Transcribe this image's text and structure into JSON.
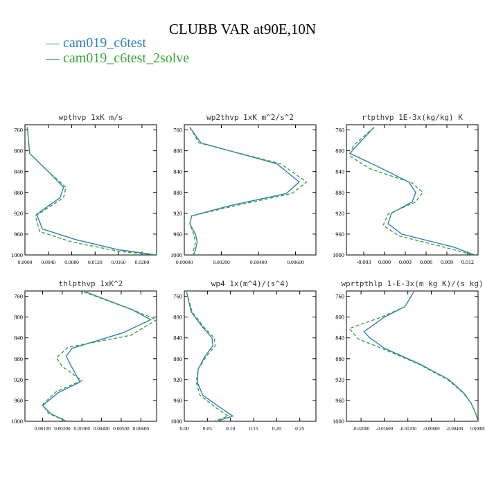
{
  "title": "CLUBB VAR at90E,10N",
  "legend": [
    {
      "label": "— cam019_c6test",
      "color": "#2f7ebf",
      "style": "solid"
    },
    {
      "label": "— cam019_c6test_2solve",
      "color": "#3aa53a",
      "style": "dashed"
    }
  ],
  "chart_data": [
    {
      "type": "line",
      "title": "wpthvp  1xK m/s",
      "ylim": [
        1000,
        750
      ],
      "yticks": [
        "760",
        "800",
        "840",
        "880",
        "920",
        "960",
        "1000"
      ],
      "xlim": [
        0.0,
        0.0225
      ],
      "xticks": [
        "0.0000",
        "0.0040",
        "0.0080",
        "0.0120",
        "0.0160",
        "0.0200"
      ],
      "grid": false,
      "series": [
        {
          "name": "cam019_c6test",
          "y": [
            755,
            780,
            805,
            840,
            870,
            890,
            922,
            950,
            970,
            990,
            1000
          ],
          "x": [
            0.0004,
            0.0006,
            0.0008,
            0.004,
            0.0066,
            0.006,
            0.002,
            0.003,
            0.0085,
            0.016,
            0.0225
          ]
        },
        {
          "name": "cam019_c6test_2solve",
          "y": [
            755,
            780,
            805,
            840,
            870,
            890,
            925,
            955,
            975,
            993,
            1000
          ],
          "x": [
            0.0004,
            0.0006,
            0.0008,
            0.004,
            0.007,
            0.0066,
            0.0018,
            0.0025,
            0.008,
            0.016,
            0.0225
          ]
        }
      ]
    },
    {
      "type": "line",
      "title": "wp2thvp  1xK m^2/s^2",
      "ylim": [
        1000,
        750
      ],
      "yticks": [
        "760",
        "800",
        "840",
        "880",
        "920",
        "960",
        "1000"
      ],
      "xlim": [
        0.0,
        0.0071
      ],
      "xticks": [
        "0.00000",
        "0.00200",
        "0.00400",
        "0.00600"
      ],
      "grid": false,
      "series": [
        {
          "name": "cam019_c6test",
          "y": [
            755,
            785,
            825,
            860,
            882,
            905,
            925,
            940,
            960,
            975,
            990,
            1000
          ],
          "x": [
            0.0003,
            0.0009,
            0.005,
            0.0062,
            0.0055,
            0.0025,
            0.0004,
            0.0003,
            0.0006,
            0.0007,
            0.0006,
            0.0005
          ]
        },
        {
          "name": "cam019_c6test_2solve",
          "y": [
            755,
            785,
            825,
            860,
            882,
            905,
            925,
            940,
            960,
            975,
            990,
            1000
          ],
          "x": [
            0.0003,
            0.0008,
            0.0052,
            0.0066,
            0.0058,
            0.0028,
            0.0004,
            0.0003,
            0.0005,
            0.0006,
            0.0005,
            0.0005
          ]
        }
      ]
    },
    {
      "type": "line",
      "title": "rtpthvp  1E-3x(kg/kg) K",
      "ylim": [
        1000,
        750
      ],
      "yticks": [
        "760",
        "800",
        "840",
        "880",
        "920",
        "960",
        "1000"
      ],
      "xlim": [
        -0.0055,
        0.0135
      ],
      "xticks": [
        "-0.003",
        "0.000",
        "0.003",
        "0.006",
        "0.009",
        "0.012"
      ],
      "grid": false,
      "series": [
        {
          "name": "cam019_c6test",
          "y": [
            755,
            790,
            805,
            830,
            860,
            880,
            898,
            920,
            940,
            960,
            985,
            1000
          ],
          "x": [
            -0.0015,
            -0.004,
            -0.005,
            -0.001,
            0.0035,
            0.0045,
            0.004,
            0.001,
            0.0005,
            0.0025,
            0.01,
            0.013
          ]
        },
        {
          "name": "cam019_c6test_2solve",
          "y": [
            755,
            790,
            810,
            835,
            862,
            880,
            898,
            922,
            943,
            963,
            988,
            1000
          ],
          "x": [
            -0.0015,
            -0.0045,
            -0.005,
            -0.002,
            0.004,
            0.0055,
            0.0045,
            0.0005,
            -0.0002,
            0.002,
            0.0095,
            0.0128
          ]
        }
      ]
    },
    {
      "type": "line",
      "title": "thlpthvp  1xK^2",
      "ylim": [
        1000,
        750
      ],
      "yticks": [
        "760",
        "800",
        "840",
        "880",
        "920",
        "960",
        "1000"
      ],
      "xlim": [
        0.0001,
        0.0068
      ],
      "xticks": [
        "0.00100",
        "0.00200",
        "0.00300",
        "0.00400",
        "0.00500",
        "0.00600"
      ],
      "grid": false,
      "series": [
        {
          "name": "cam019_c6test",
          "y": [
            752,
            785,
            805,
            830,
            860,
            875,
            890,
            925,
            945,
            970,
            985,
            1000
          ],
          "x": [
            0.0032,
            0.0055,
            0.0065,
            0.0051,
            0.0025,
            0.0022,
            0.0024,
            0.0029,
            0.0018,
            0.001,
            0.0014,
            0.0022
          ]
        },
        {
          "name": "cam019_c6test_2solve",
          "y": [
            752,
            785,
            805,
            835,
            858,
            878,
            895,
            922,
            943,
            968,
            985,
            1000
          ],
          "x": [
            0.0031,
            0.0055,
            0.0068,
            0.0055,
            0.0023,
            0.0017,
            0.002,
            0.003,
            0.0017,
            0.001,
            0.0013,
            0.0022
          ]
        }
      ]
    },
    {
      "type": "line",
      "title": "wp4  1x(m^4)/(s^4)",
      "ylim": [
        1000,
        750
      ],
      "yticks": [
        "760",
        "800",
        "840",
        "880",
        "920",
        "960",
        "1000"
      ],
      "xlim": [
        0.0,
        0.285
      ],
      "xticks": [
        "0.00",
        "0.05",
        "0.10",
        "0.15",
        "0.20",
        "0.25"
      ],
      "grid": false,
      "series": [
        {
          "name": "cam019_c6test",
          "y": [
            752,
            790,
            820,
            840,
            855,
            875,
            900,
            925,
            950,
            975,
            990,
            1000
          ],
          "x": [
            0.005,
            0.015,
            0.04,
            0.06,
            0.062,
            0.045,
            0.03,
            0.028,
            0.04,
            0.08,
            0.105,
            0.07
          ]
        },
        {
          "name": "cam019_c6test_2solve",
          "y": [
            752,
            790,
            820,
            840,
            855,
            875,
            900,
            925,
            950,
            975,
            990,
            1000
          ],
          "x": [
            0.005,
            0.017,
            0.043,
            0.065,
            0.067,
            0.048,
            0.03,
            0.026,
            0.034,
            0.07,
            0.095,
            0.065
          ]
        }
      ]
    },
    {
      "type": "line",
      "title": "wprtpthlp  1-E-3x(m kg K)/(s kg)",
      "ylim": [
        1000,
        750
      ],
      "yticks": [
        "760",
        "800",
        "840",
        "880",
        "920",
        "960",
        "1000"
      ],
      "xlim": [
        -0.0225,
        0.0
      ],
      "xticks": [
        "-0.02000",
        "-0.01600",
        "-0.01200",
        "-0.00800",
        "-0.00400",
        "0.00000"
      ],
      "grid": false,
      "series": [
        {
          "name": "cam019_c6test",
          "y": [
            752,
            780,
            800,
            828,
            840,
            860,
            890,
            920,
            945,
            965,
            985,
            1000
          ],
          "x": [
            -0.011,
            -0.0125,
            -0.016,
            -0.0195,
            -0.0185,
            -0.016,
            -0.01,
            -0.005,
            -0.0025,
            -0.0012,
            -0.0004,
            0.0
          ]
        },
        {
          "name": "cam019_c6test_2solve",
          "y": [
            752,
            780,
            800,
            822,
            842,
            860,
            890,
            920,
            945,
            965,
            985,
            1000
          ],
          "x": [
            -0.011,
            -0.0125,
            -0.0165,
            -0.022,
            -0.0205,
            -0.0165,
            -0.0102,
            -0.0052,
            -0.0026,
            -0.0012,
            -0.0004,
            0.0
          ]
        }
      ]
    }
  ]
}
